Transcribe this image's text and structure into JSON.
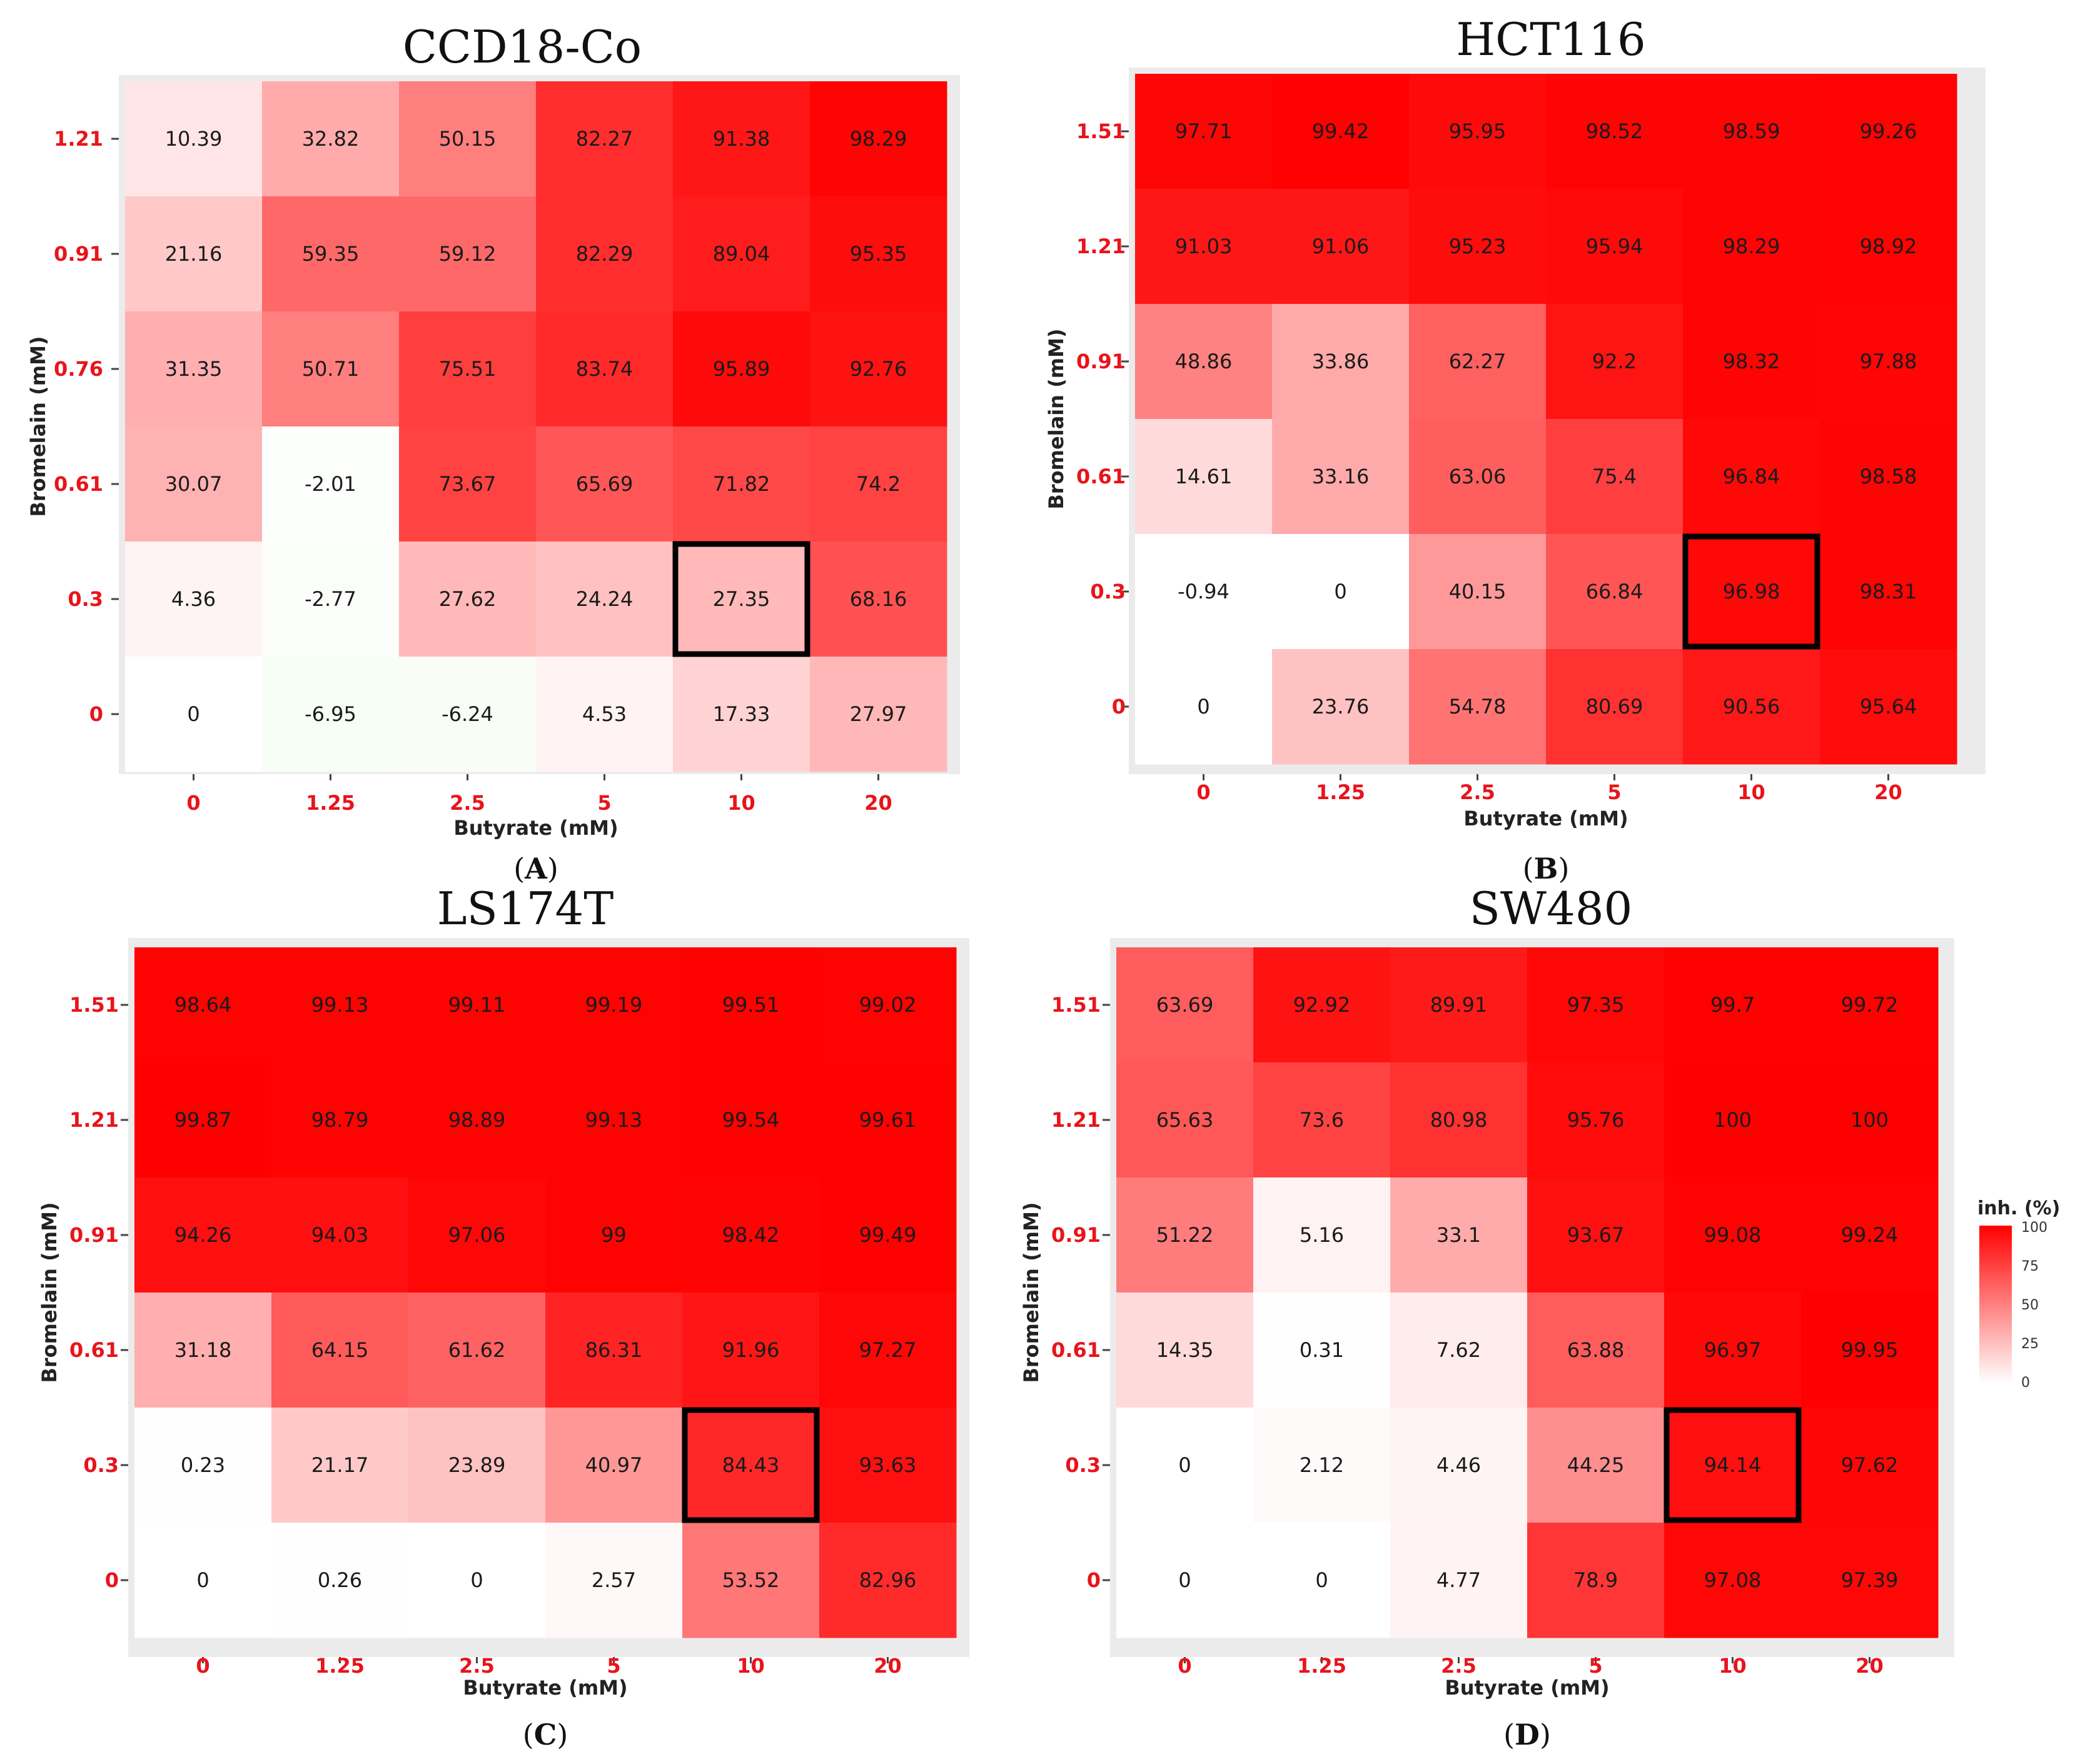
{
  "figure": {
    "legend": {
      "title": "inh. (%)",
      "ticks": [
        "100",
        "75",
        "50",
        "25",
        "0"
      ]
    },
    "colors": {
      "low": "#ffffff",
      "high": "#ff0000",
      "negative": "#eaf9e6",
      "highlight": "#000000",
      "tick": "#e8141b",
      "panel_bg": "#ebebeb"
    }
  },
  "chart_data": [
    {
      "type": "heatmap",
      "title": "CCD18-Co",
      "caption": "A",
      "xlabel": "Butyrate (mM)",
      "ylabel": "Bromelain (mM)",
      "x": [
        "0",
        "1.25",
        "2.5",
        "5",
        "10",
        "20"
      ],
      "y": [
        "1.21",
        "0.91",
        "0.76",
        "0.61",
        "0.3",
        "0"
      ],
      "values": [
        [
          "10.39",
          "32.82",
          "50.15",
          "82.27",
          "91.38",
          "98.29"
        ],
        [
          "21.16",
          "59.35",
          "59.12",
          "82.29",
          "89.04",
          "95.35"
        ],
        [
          "31.35",
          "50.71",
          "75.51",
          "83.74",
          "95.89",
          "92.76"
        ],
        [
          "30.07",
          "-2.01",
          "73.67",
          "65.69",
          "71.82",
          "74.2"
        ],
        [
          "4.36",
          "-2.77",
          "27.62",
          "24.24",
          "27.35",
          "68.16"
        ],
        [
          "0",
          "-6.95",
          "-6.24",
          "4.53",
          "17.33",
          "27.97"
        ]
      ],
      "highlight": {
        "x": "10",
        "y": "0.3"
      }
    },
    {
      "type": "heatmap",
      "title": "HCT116",
      "caption": "B",
      "xlabel": "Butyrate (mM)",
      "ylabel": "Bromelain (mM)",
      "x": [
        "0",
        "1.25",
        "2.5",
        "5",
        "10",
        "20"
      ],
      "y": [
        "1.51",
        "1.21",
        "0.91",
        "0.61",
        "0.3",
        "0"
      ],
      "values": [
        [
          "97.71",
          "99.42",
          "95.95",
          "98.52",
          "98.59",
          "99.26"
        ],
        [
          "91.03",
          "91.06",
          "95.23",
          "95.94",
          "98.29",
          "98.92"
        ],
        [
          "48.86",
          "33.86",
          "62.27",
          "92.2",
          "98.32",
          "97.88"
        ],
        [
          "14.61",
          "33.16",
          "63.06",
          "75.4",
          "96.84",
          "98.58"
        ],
        [
          "-0.94",
          "0",
          "40.15",
          "66.84",
          "96.98",
          "98.31"
        ],
        [
          "0",
          "23.76",
          "54.78",
          "80.69",
          "90.56",
          "95.64"
        ]
      ],
      "highlight": {
        "x": "10",
        "y": "0.3"
      }
    },
    {
      "type": "heatmap",
      "title": "LS174T",
      "caption": "C",
      "xlabel": "Butyrate (mM)",
      "ylabel": "Bromelain (mM)",
      "x": [
        "0",
        "1.25",
        "2.5",
        "5",
        "10",
        "20"
      ],
      "y": [
        "1.51",
        "1.21",
        "0.91",
        "0.61",
        "0.3",
        "0"
      ],
      "values": [
        [
          "98.64",
          "99.13",
          "99.11",
          "99.19",
          "99.51",
          "99.02"
        ],
        [
          "99.87",
          "98.79",
          "98.89",
          "99.13",
          "99.54",
          "99.61"
        ],
        [
          "94.26",
          "94.03",
          "97.06",
          "99",
          "98.42",
          "99.49"
        ],
        [
          "31.18",
          "64.15",
          "61.62",
          "86.31",
          "91.96",
          "97.27"
        ],
        [
          "0.23",
          "21.17",
          "23.89",
          "40.97",
          "84.43",
          "93.63"
        ],
        [
          "0",
          "0.26",
          "0",
          "2.57",
          "53.52",
          "82.96"
        ]
      ],
      "highlight": {
        "x": "10",
        "y": "0.3"
      }
    },
    {
      "type": "heatmap",
      "title": "SW480",
      "caption": "D",
      "xlabel": "Butyrate (mM)",
      "ylabel": "Bromelain (mM)",
      "x": [
        "0",
        "1.25",
        "2.5",
        "5",
        "10",
        "20"
      ],
      "y": [
        "1.51",
        "1.21",
        "0.91",
        "0.61",
        "0.3",
        "0"
      ],
      "values": [
        [
          "63.69",
          "92.92",
          "89.91",
          "97.35",
          "99.7",
          "99.72"
        ],
        [
          "65.63",
          "73.6",
          "80.98",
          "95.76",
          "100",
          "100"
        ],
        [
          "51.22",
          "5.16",
          "33.1",
          "93.67",
          "99.08",
          "99.24"
        ],
        [
          "14.35",
          "0.31",
          "7.62",
          "63.88",
          "96.97",
          "99.95"
        ],
        [
          "0",
          "2.12",
          "4.46",
          "44.25",
          "94.14",
          "97.62"
        ],
        [
          "0",
          "0",
          "4.77",
          "78.9",
          "97.08",
          "97.39"
        ]
      ],
      "highlight": {
        "x": "10",
        "y": "0.3"
      }
    }
  ]
}
